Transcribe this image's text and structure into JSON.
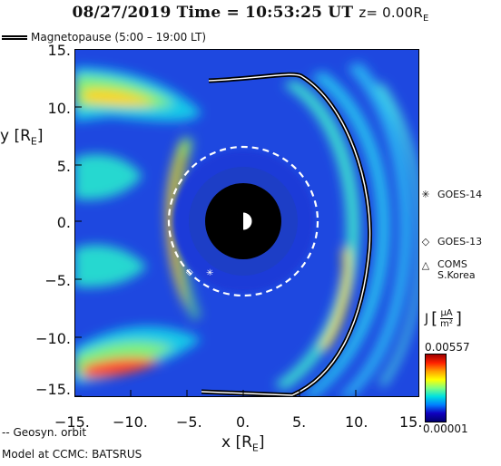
{
  "title": {
    "prefix": "08/27/2019 Time = 10:53:25 UT",
    "z_label": "z= 0.00R",
    "z_sub": "E"
  },
  "magnetopause_legend": "Magnetopause (5:00 – 19:00 LT)",
  "axes": {
    "y_ticks": [
      "15.",
      "10.",
      "5.",
      "0.",
      "−5.",
      "−10.",
      "−15."
    ],
    "x_ticks": [
      "−15.",
      "−10.",
      "−5.",
      "0.",
      "5.",
      "10.",
      "15."
    ],
    "y_label": "y [R",
    "y_label_sub": "E",
    "y_label_end": "]",
    "x_label": "x [R",
    "x_label_sub": "E",
    "x_label_end": "]",
    "range": [
      -15,
      15
    ]
  },
  "satellites": [
    {
      "symbol": "✳",
      "name": "GOES-14"
    },
    {
      "symbol": "◇",
      "name": "GOES-13"
    },
    {
      "symbol": "△",
      "name": "COMS",
      "name2": "S.Korea"
    }
  ],
  "colorbar": {
    "label": "J",
    "unit_num": "μA",
    "unit_den": "m²",
    "max": "0.00557",
    "min": "0.00001"
  },
  "footer": {
    "geosyn": "-- Geosyn. orbit",
    "model": "Model at CCMC: BATSRUS"
  },
  "colors": {
    "background_field": "#1e48e0",
    "earth_disk": "#000000",
    "orbit": "#ffffff",
    "magnetopause": "#000000"
  }
}
